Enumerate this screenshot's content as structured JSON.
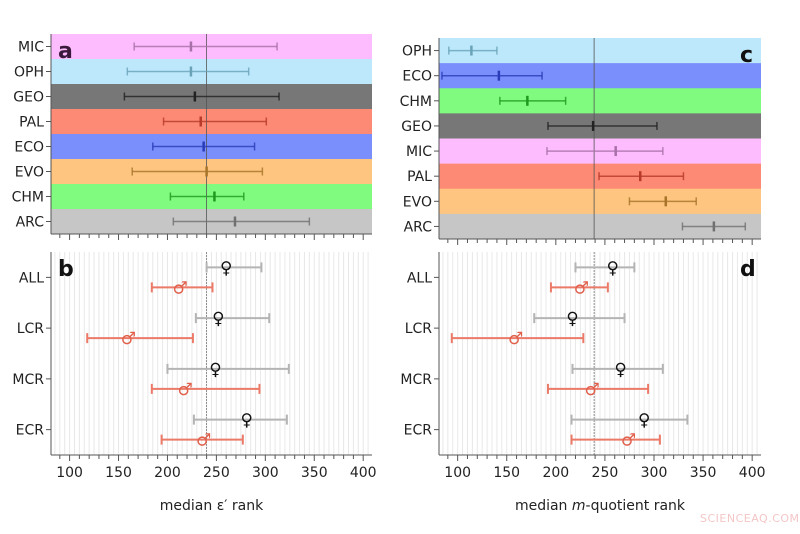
{
  "chart_data": [
    {
      "panel": "a",
      "type": "errorbar",
      "xlim": [
        81,
        409
      ],
      "reference_line": 240,
      "categories": [
        "MIC",
        "OPH",
        "GEO",
        "PAL",
        "ECO",
        "EVO",
        "CHM",
        "ARC"
      ],
      "band_colors": [
        "#fdbcfd",
        "#bde8fb",
        "#777777",
        "#fd8a74",
        "#7b8ffc",
        "#fdc57f",
        "#80fb7f",
        "#c6c6c6"
      ],
      "bar_colors": [
        "#a870a8",
        "#6aa3b8",
        "#222222",
        "#b83a2a",
        "#2a3cb8",
        "#a8742a",
        "#1e9a1e",
        "#707070"
      ],
      "low": [
        166,
        159,
        156,
        196,
        185,
        164,
        203,
        206
      ],
      "median": [
        224,
        224,
        228,
        234,
        237,
        240,
        248,
        269
      ],
      "high": [
        312,
        283,
        314,
        301,
        289,
        297,
        278,
        345
      ]
    },
    {
      "panel": "b",
      "type": "errorbar",
      "xlim": [
        81,
        409
      ],
      "reference_line": 240,
      "categories": [
        "ALL",
        "LCR",
        "MCR",
        "ECR"
      ],
      "xticks": [
        100,
        150,
        200,
        250,
        300,
        350,
        400
      ],
      "xlabel": "median ε′ rank",
      "series": [
        {
          "symbol": "♀",
          "color": "#b4b4b4",
          "symbol_color": "#111111",
          "low": [
            240,
            229,
            200,
            227
          ],
          "median": [
            260,
            252,
            249,
            281
          ],
          "high": [
            296,
            304,
            324,
            322
          ]
        },
        {
          "symbol": "♂",
          "color": "#ec7a68",
          "symbol_color": "#e0604c",
          "low": [
            184,
            118,
            184,
            194
          ],
          "median": [
            213,
            160,
            218,
            237
          ],
          "high": [
            246,
            226,
            294,
            277
          ]
        }
      ]
    },
    {
      "panel": "c",
      "type": "errorbar",
      "xlim": [
        81,
        409
      ],
      "reference_line": 239,
      "categories": [
        "OPH",
        "ECO",
        "CHM",
        "GEO",
        "MIC",
        "PAL",
        "EVO",
        "ARC"
      ],
      "band_colors": [
        "#bde8fb",
        "#7b8ffc",
        "#80fb7f",
        "#777777",
        "#fdbcfd",
        "#fd8a74",
        "#fdc57f",
        "#c6c6c6"
      ],
      "bar_colors": [
        "#6aa3b8",
        "#2a3cb8",
        "#1e9a1e",
        "#222222",
        "#a870a8",
        "#b83a2a",
        "#a8742a",
        "#707070"
      ],
      "low": [
        91,
        84,
        143,
        192,
        191,
        244,
        275,
        329
      ],
      "median": [
        114,
        142,
        171,
        238,
        261,
        286,
        312,
        361
      ],
      "high": [
        140,
        186,
        210,
        303,
        309,
        330,
        343,
        393
      ]
    },
    {
      "panel": "d",
      "type": "errorbar",
      "xlim": [
        81,
        409
      ],
      "reference_line": 239,
      "categories": [
        "ALL",
        "LCR",
        "MCR",
        "ECR"
      ],
      "xticks": [
        100,
        150,
        200,
        250,
        300,
        350,
        400
      ],
      "xlabel_pre": "median ",
      "xlabel_italic": "m",
      "xlabel_post": "-quotient rank",
      "series": [
        {
          "symbol": "♀",
          "color": "#b4b4b4",
          "symbol_color": "#111111",
          "low": [
            220,
            178,
            217,
            216
          ],
          "median": [
            258,
            217,
            266,
            290
          ],
          "high": [
            280,
            270,
            309,
            334
          ]
        },
        {
          "symbol": "♂",
          "color": "#ec7a68",
          "symbol_color": "#e0604c",
          "low": [
            195,
            94,
            192,
            216
          ],
          "median": [
            226,
            159,
            237,
            274
          ],
          "high": [
            253,
            228,
            294,
            306
          ]
        }
      ]
    }
  ],
  "watermark": "SCIENCEAQ.COM"
}
